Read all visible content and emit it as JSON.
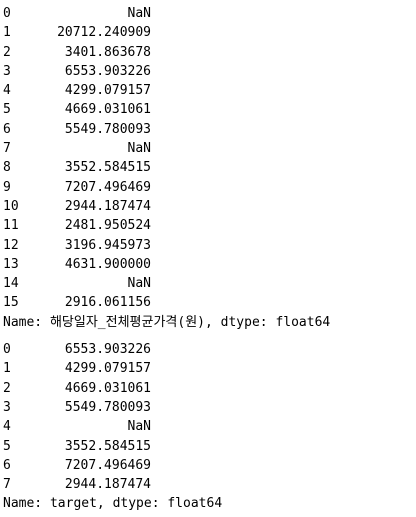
{
  "series": [
    {
      "rows": [
        {
          "index": "0",
          "value": "NaN"
        },
        {
          "index": "1",
          "value": "20712.240909"
        },
        {
          "index": "2",
          "value": "3401.863678"
        },
        {
          "index": "3",
          "value": "6553.903226"
        },
        {
          "index": "4",
          "value": "4299.079157"
        },
        {
          "index": "5",
          "value": "4669.031061"
        },
        {
          "index": "6",
          "value": "5549.780093"
        },
        {
          "index": "7",
          "value": "NaN"
        },
        {
          "index": "8",
          "value": "3552.584515"
        },
        {
          "index": "9",
          "value": "7207.496469"
        },
        {
          "index": "10",
          "value": "2944.187474"
        },
        {
          "index": "11",
          "value": "2481.950524"
        },
        {
          "index": "12",
          "value": "3196.945973"
        },
        {
          "index": "13",
          "value": "4631.900000"
        },
        {
          "index": "14",
          "value": "NaN"
        },
        {
          "index": "15",
          "value": "2916.061156"
        }
      ],
      "footer": "Name: 해당일자_전체평균가격(원), dtype: float64"
    },
    {
      "rows": [
        {
          "index": "0",
          "value": "6553.903226"
        },
        {
          "index": "1",
          "value": "4299.079157"
        },
        {
          "index": "2",
          "value": "4669.031061"
        },
        {
          "index": "3",
          "value": "5549.780093"
        },
        {
          "index": "4",
          "value": "NaN"
        },
        {
          "index": "5",
          "value": "3552.584515"
        },
        {
          "index": "6",
          "value": "7207.496469"
        },
        {
          "index": "7",
          "value": "2944.187474"
        }
      ],
      "footer": "Name: target, dtype: float64"
    }
  ]
}
